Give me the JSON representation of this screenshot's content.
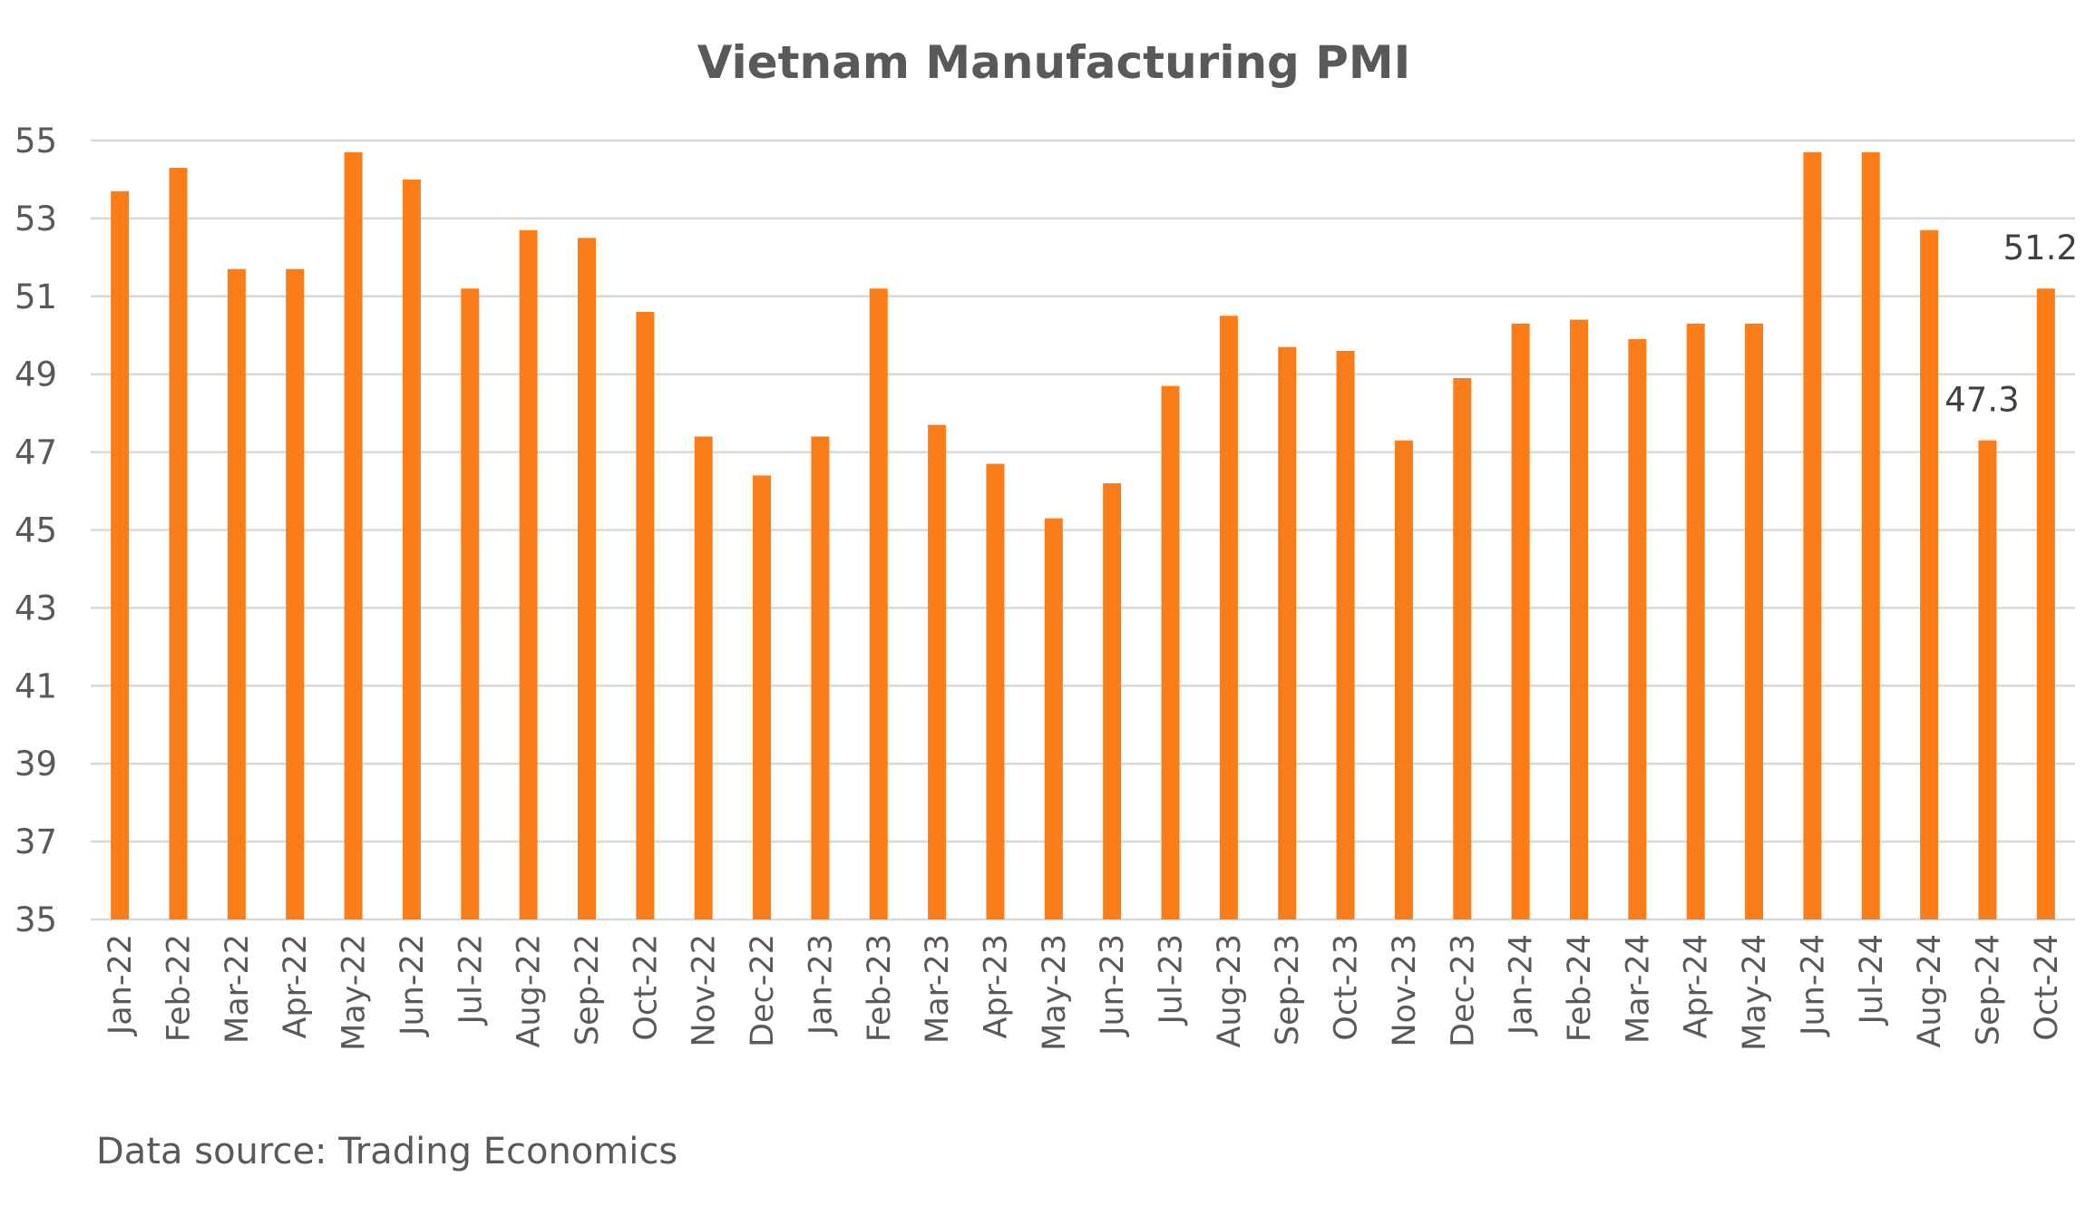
{
  "chart_data": {
    "type": "bar",
    "title": "Vietnam Manufacturing PMI",
    "xlabel": "",
    "ylabel": "",
    "ylim": [
      35,
      55
    ],
    "yticks": [
      35,
      37,
      39,
      41,
      43,
      45,
      47,
      49,
      51,
      53,
      55
    ],
    "grid": true,
    "legend": "none",
    "bar_color": "#fa7d19",
    "categories": [
      "Jan-22",
      "Feb-22",
      "Mar-22",
      "Apr-22",
      "May-22",
      "Jun-22",
      "Jul-22",
      "Aug-22",
      "Sep-22",
      "Oct-22",
      "Nov-22",
      "Dec-22",
      "Jan-23",
      "Feb-23",
      "Mar-23",
      "Apr-23",
      "May-23",
      "Jun-23",
      "Jul-23",
      "Aug-23",
      "Sep-23",
      "Oct-23",
      "Nov-23",
      "Dec-23",
      "Jan-24",
      "Feb-24",
      "Mar-24",
      "Apr-24",
      "May-24",
      "Jun-24",
      "Jul-24",
      "Aug-24",
      "Sep-24",
      "Oct-24"
    ],
    "values": [
      53.7,
      54.3,
      51.7,
      51.7,
      54.7,
      54.0,
      51.2,
      52.7,
      52.5,
      50.6,
      47.4,
      46.4,
      47.4,
      51.2,
      47.7,
      46.7,
      45.3,
      46.2,
      48.7,
      50.5,
      49.7,
      49.6,
      47.3,
      48.9,
      50.3,
      50.4,
      49.9,
      50.3,
      50.3,
      54.7,
      54.7,
      52.7,
      47.3,
      51.2
    ],
    "annotations": [
      {
        "category": "Sep-24",
        "text": "47.3"
      },
      {
        "category": "Oct-24",
        "text": "51.2"
      }
    ]
  },
  "footer": {
    "source": "Data source: Trading Economics"
  }
}
